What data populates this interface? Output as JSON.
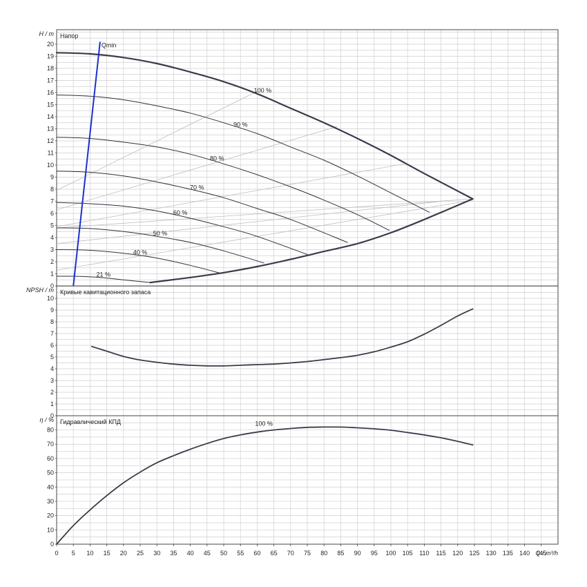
{
  "colors": {
    "grid": "#cfcfcf",
    "frame": "#444444",
    "curve": "#3a3a4a",
    "speed_curve": "#2e2e3e",
    "efficiency_guide": "#bdbdbd",
    "qmin_line": "#1a2fd0"
  },
  "chart_data": [
    {
      "type": "line",
      "title": "Напор",
      "ylabel": "H / m",
      "xlim": [
        0,
        150
      ],
      "ylim": [
        0,
        21
      ],
      "yticks": [
        0,
        1,
        2,
        3,
        4,
        5,
        6,
        7,
        8,
        9,
        10,
        11,
        12,
        13,
        14,
        15,
        16,
        17,
        18,
        19,
        20
      ],
      "grid": true,
      "qmin": {
        "label": "Qmin",
        "x": [
          5,
          13
        ],
        "y": [
          0,
          20.2
        ]
      },
      "series": [
        {
          "name": "100 %",
          "x": [
            0,
            10,
            20,
            30,
            40,
            50,
            60,
            70,
            80,
            90,
            100,
            110,
            124.5
          ],
          "y": [
            19.3,
            19.2,
            18.9,
            18.4,
            17.7,
            16.9,
            15.9,
            14.7,
            13.5,
            12.2,
            10.8,
            9.3,
            7.2
          ]
        },
        {
          "name": "90 %",
          "x": [
            0,
            10,
            20,
            30,
            40,
            50,
            60,
            70,
            80,
            90,
            100,
            111.5
          ],
          "y": [
            15.8,
            15.7,
            15.4,
            14.9,
            14.3,
            13.5,
            12.6,
            11.5,
            10.4,
            9.1,
            7.7,
            6.1
          ]
        },
        {
          "name": "80 %",
          "x": [
            0,
            10,
            20,
            30,
            40,
            50,
            60,
            70,
            80,
            90,
            99.5
          ],
          "y": [
            12.3,
            12.2,
            11.9,
            11.5,
            10.9,
            10.1,
            9.2,
            8.2,
            7.1,
            5.9,
            4.6
          ]
        },
        {
          "name": "70 %",
          "x": [
            0,
            10,
            20,
            30,
            40,
            50,
            60,
            70,
            87
          ],
          "y": [
            9.5,
            9.4,
            9.1,
            8.6,
            8.0,
            7.3,
            6.4,
            5.5,
            3.6
          ]
        },
        {
          "name": "60 %",
          "x": [
            0,
            10,
            20,
            30,
            40,
            50,
            60,
            75
          ],
          "y": [
            6.9,
            6.8,
            6.6,
            6.2,
            5.6,
            4.9,
            4.1,
            2.6
          ]
        },
        {
          "name": "50 %",
          "x": [
            0,
            10,
            20,
            30,
            40,
            50,
            62
          ],
          "y": [
            4.8,
            4.75,
            4.5,
            4.1,
            3.6,
            2.9,
            1.9
          ]
        },
        {
          "name": "40 %",
          "x": [
            0,
            10,
            20,
            30,
            40,
            49
          ],
          "y": [
            3.0,
            2.95,
            2.7,
            2.3,
            1.7,
            1.05
          ]
        },
        {
          "name": "21 %",
          "x": [
            0,
            5,
            10,
            15,
            20,
            28
          ],
          "y": [
            0.8,
            0.8,
            0.75,
            0.65,
            0.5,
            0.28
          ]
        },
        {
          "name": "",
          "x": [
            28,
            40,
            50,
            60,
            70,
            80,
            90,
            100,
            110,
            124.5
          ],
          "y": [
            0.28,
            0.7,
            1.1,
            1.6,
            2.2,
            2.85,
            3.5,
            4.4,
            5.5,
            7.2
          ]
        }
      ],
      "efficiency_guides": [
        {
          "x": [
            0,
            60
          ],
          "y": [
            7.9,
            16.1
          ]
        },
        {
          "x": [
            0,
            84
          ],
          "y": [
            6.3,
            13.2
          ]
        },
        {
          "x": [
            0,
            104
          ],
          "y": [
            4.9,
            10.1
          ]
        },
        {
          "x": [
            0,
            115
          ],
          "y": [
            3.5,
            7.0
          ]
        },
        {
          "x": [
            0,
            124.5
          ],
          "y": [
            1.3,
            7.1
          ]
        },
        {
          "x": [
            0,
            124.5
          ],
          "y": [
            4.8,
            7.2
          ]
        }
      ]
    },
    {
      "type": "line",
      "title": "Кривые кавитационного запаса",
      "ylabel": "NPSH / m",
      "xlim": [
        0,
        150
      ],
      "ylim": [
        0,
        11
      ],
      "yticks": [
        0,
        1,
        2,
        3,
        4,
        5,
        6,
        7,
        8,
        9,
        10
      ],
      "grid": true,
      "series": [
        {
          "name": "",
          "x": [
            10.5,
            15,
            20,
            25,
            30,
            35,
            40,
            45,
            50,
            55,
            60,
            65,
            70,
            75,
            80,
            85,
            90,
            95,
            100,
            105,
            110,
            115,
            120,
            124.5
          ],
          "y": [
            5.9,
            5.5,
            5.05,
            4.75,
            4.55,
            4.4,
            4.3,
            4.25,
            4.25,
            4.3,
            4.35,
            4.4,
            4.5,
            4.62,
            4.78,
            4.95,
            5.15,
            5.45,
            5.85,
            6.3,
            6.95,
            7.7,
            8.5,
            9.1
          ]
        }
      ]
    },
    {
      "type": "line",
      "title": "Гидравлический КПД",
      "ylabel": "η / %",
      "xlabel": "Q / m³/h",
      "xlim": [
        0,
        150
      ],
      "ylim": [
        0,
        90
      ],
      "xticks": [
        0,
        5,
        10,
        15,
        20,
        25,
        30,
        35,
        40,
        45,
        50,
        55,
        60,
        65,
        70,
        75,
        80,
        85,
        90,
        95,
        100,
        105,
        110,
        115,
        120,
        125,
        130,
        135,
        140,
        145
      ],
      "yticks": [
        0,
        10,
        20,
        30,
        40,
        50,
        60,
        70,
        80
      ],
      "grid": true,
      "series": [
        {
          "name": "100 %",
          "x": [
            0,
            5,
            10,
            15,
            20,
            25,
            30,
            35,
            40,
            45,
            50,
            55,
            60,
            65,
            70,
            75,
            80,
            85,
            90,
            95,
            100,
            105,
            110,
            115,
            120,
            124.5
          ],
          "y": [
            0,
            13,
            24,
            34,
            43,
            50.5,
            57,
            62,
            66.5,
            70.5,
            74,
            76.5,
            78.5,
            80,
            81,
            81.8,
            82,
            82,
            81.5,
            80.8,
            79.8,
            78.2,
            76.5,
            74.5,
            72,
            69.5
          ]
        }
      ]
    }
  ]
}
